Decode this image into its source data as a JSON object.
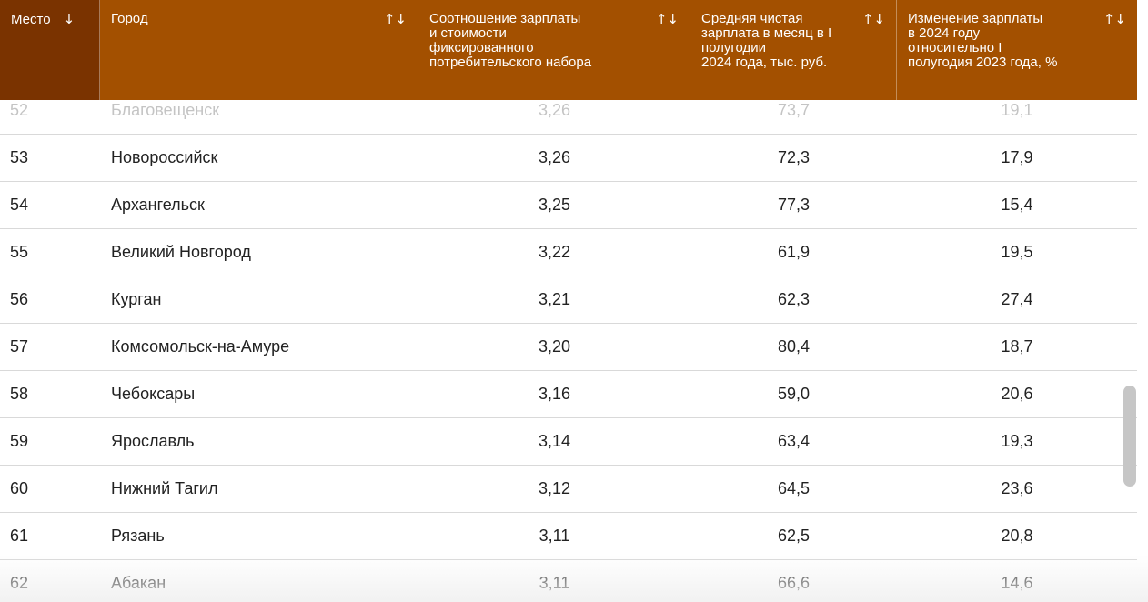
{
  "table": {
    "columns": [
      {
        "label": "Место",
        "sort_icon": "↓"
      },
      {
        "label": "Город",
        "sort_icon": "↑↓"
      },
      {
        "label": "Соотношение зарплаты\nи стоимости\nфиксированного\nпотребительского набора",
        "sort_icon": "↑↓"
      },
      {
        "label": "Средняя чистая\nзарплата в месяц в I\nполугодии\n2024 года, тыс. руб.",
        "sort_icon": "↑↓"
      },
      {
        "label": "Изменение зарплаты\nв 2024 году\nотносительно I\nполугодия 2023 года, %",
        "sort_icon": "↑↓"
      }
    ],
    "rows": [
      {
        "rank": "52",
        "city": "Благовещенск",
        "ratio": "3,26",
        "salary": "73,7",
        "change": "19,1"
      },
      {
        "rank": "53",
        "city": "Новороссийск",
        "ratio": "3,26",
        "salary": "72,3",
        "change": "17,9"
      },
      {
        "rank": "54",
        "city": "Архангельск",
        "ratio": "3,25",
        "salary": "77,3",
        "change": "15,4"
      },
      {
        "rank": "55",
        "city": "Великий Новгород",
        "ratio": "3,22",
        "salary": "61,9",
        "change": "19,5"
      },
      {
        "rank": "56",
        "city": "Курган",
        "ratio": "3,21",
        "salary": "62,3",
        "change": "27,4"
      },
      {
        "rank": "57",
        "city": "Комсомольск-на-Амуре",
        "ratio": "3,20",
        "salary": "80,4",
        "change": "18,7"
      },
      {
        "rank": "58",
        "city": "Чебоксары",
        "ratio": "3,16",
        "salary": "59,0",
        "change": "20,6"
      },
      {
        "rank": "59",
        "city": "Ярославль",
        "ratio": "3,14",
        "salary": "63,4",
        "change": "19,3"
      },
      {
        "rank": "60",
        "city": "Нижний Тагил",
        "ratio": "3,12",
        "salary": "64,5",
        "change": "23,6"
      },
      {
        "rank": "61",
        "city": "Рязань",
        "ratio": "3,11",
        "salary": "62,5",
        "change": "20,8"
      },
      {
        "rank": "62",
        "city": "Абакан",
        "ratio": "3,11",
        "salary": "66,6",
        "change": "14,6"
      }
    ]
  },
  "colors": {
    "header_bg": "#a35000",
    "header_sorted_bg": "#7a3300",
    "header_text": "#ffffff",
    "row_divider": "#d9d9d9",
    "scroll_thumb": "#c6c6c6"
  },
  "icons": {
    "sort_desc": "arrow-down-icon",
    "sort_both": "sort-arrows-icon"
  }
}
